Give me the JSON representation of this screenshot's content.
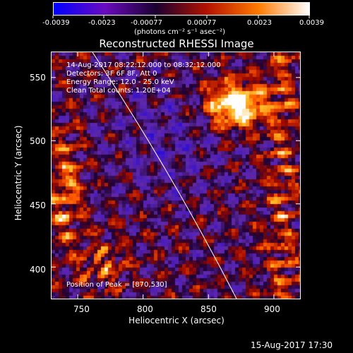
{
  "colorbar": {
    "labels": [
      "-0.0039",
      "-0.0023",
      "-0.00077",
      "0.00077",
      "0.0023",
      "0.0039"
    ],
    "unit": "(photons cm⁻² s⁻¹ asec⁻²)",
    "colors": [
      "#0000ff",
      "#6a0cc0",
      "#1a0030",
      "#b41200",
      "#ff7a00",
      "#ffffff"
    ]
  },
  "title": "Reconstructed RHESSI Image",
  "annotations": {
    "time": "14-Aug-2017 08:22:12.000 to 08:32:12.000",
    "detectors": "Detectors: 3F 6F 8F, Att 0",
    "energy": "Energy Range: 12.0 - 25.0 keV",
    "clean": "Clean    Total counts: 1.20E+04",
    "peak": "Position of Peak = [870,530]"
  },
  "axes": {
    "xlabel": "Heliocentric X (arcsec)",
    "ylabel": "Heliocentric Y (arcsec)",
    "xticks": [
      "750",
      "800",
      "850",
      "900"
    ],
    "yticks": [
      "550",
      "500",
      "450",
      "400"
    ]
  },
  "chart_data": {
    "type": "heatmap",
    "title": "Reconstructed RHESSI Image",
    "xlabel": "Heliocentric X (arcsec)",
    "ylabel": "Heliocentric Y (arcsec)",
    "xlim": [
      730,
      920
    ],
    "ylim": [
      375,
      570
    ],
    "x_ticks": [
      750,
      800,
      850,
      900
    ],
    "y_ticks": [
      400,
      450,
      500,
      550
    ],
    "colorbar_range": [
      -0.0039,
      0.0039
    ],
    "peak": [
      870,
      530
    ],
    "bright_regions": [
      "upper-right",
      "left-edge",
      "lower-left",
      "right-edge"
    ]
  },
  "timestamp": "15-Aug-2017 17:30"
}
